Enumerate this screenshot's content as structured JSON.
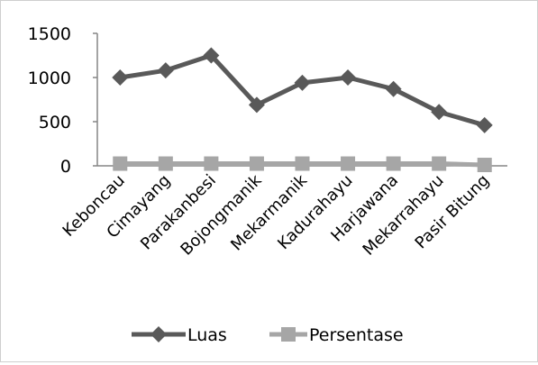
{
  "chart_data": {
    "type": "line",
    "categories": [
      "Keboncau",
      "Cimayang",
      "Parakanbesi",
      "Bojongmanik",
      "Mekarmanik",
      "Kadurahayu",
      "Harjawana",
      "Mekarrahayu",
      "Pasir Bitung"
    ],
    "series": [
      {
        "name": "Luas",
        "values": [
          1000,
          1080,
          1250,
          690,
          940,
          1000,
          870,
          610,
          460
        ],
        "color": "#595959",
        "marker": "diamond"
      },
      {
        "name": "Persentase",
        "values": [
          25,
          25,
          25,
          25,
          25,
          25,
          25,
          25,
          10
        ],
        "color": "#a6a6a6",
        "marker": "square"
      }
    ],
    "y_ticks": [
      "1500",
      "1000",
      "500",
      "0"
    ],
    "ylim": [
      0,
      1500
    ],
    "grid": false,
    "legend_position": "bottom"
  }
}
